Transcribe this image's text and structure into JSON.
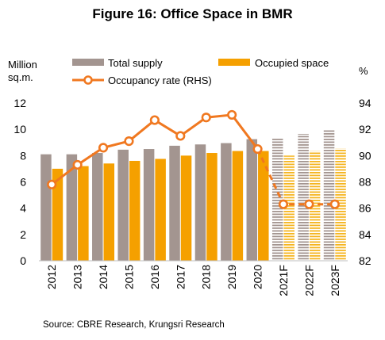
{
  "title": "Figure 16: Office Space in BMR",
  "source": "Source: CBRE Research, Krungsri Research",
  "colors": {
    "total_supply": "#A39590",
    "occupied_space": "#F5A000",
    "occupancy_rate": "#F07820",
    "forecast_total_stripe": "#A39590",
    "forecast_occupied_stripe": "#F5B520"
  },
  "chart_data": {
    "type": "bar",
    "categories": [
      "2012",
      "2013",
      "2014",
      "2015",
      "2016",
      "2017",
      "2018",
      "2019",
      "2020",
      "2021F",
      "2022F",
      "2023F"
    ],
    "forecast_from_index": 9,
    "series": [
      {
        "name": "Total supply",
        "type": "bar",
        "axis": "left",
        "values": [
          8.1,
          8.1,
          8.2,
          8.45,
          8.5,
          8.75,
          8.85,
          8.95,
          9.25,
          9.3,
          9.65,
          10.0
        ]
      },
      {
        "name": "Occupied space",
        "type": "bar",
        "axis": "left",
        "values": [
          7.0,
          7.2,
          7.4,
          7.6,
          7.75,
          8.0,
          8.2,
          8.35,
          8.35,
          8.0,
          8.35,
          8.55
        ]
      },
      {
        "name": "Occupancy rate (RHS)",
        "type": "line",
        "axis": "right",
        "values": [
          87.8,
          89.3,
          90.6,
          91.1,
          92.7,
          91.5,
          92.9,
          93.1,
          90.5,
          86.3,
          86.3,
          86.3
        ]
      }
    ],
    "ylabel_left": "Million sq.m.",
    "ylabel_left_lines": [
      "Million",
      "sq.m."
    ],
    "ylabel_right": "%",
    "ylim_left": [
      0,
      12
    ],
    "yticks_left": [
      "0",
      "2",
      "4",
      "6",
      "8",
      "10",
      "12"
    ],
    "ylim_right": [
      82,
      94
    ],
    "yticks_right": [
      "82",
      "84",
      "86",
      "88",
      "90",
      "92",
      "94"
    ],
    "grid": false,
    "legend_position": "top",
    "legend": [
      "Total supply",
      "Occupied space",
      "Occupancy rate (RHS)"
    ]
  }
}
